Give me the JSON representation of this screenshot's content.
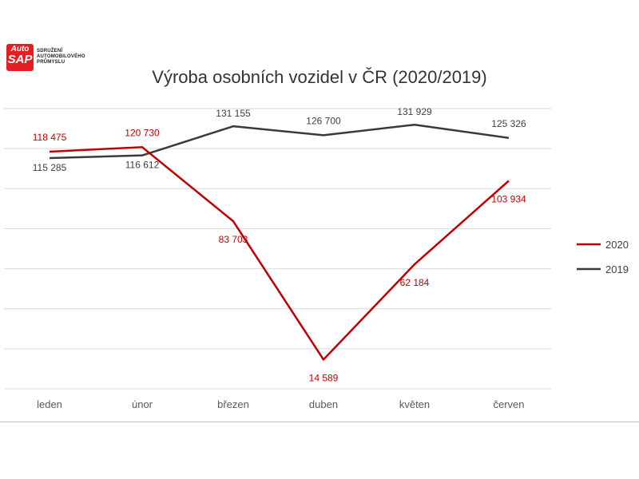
{
  "logo": {
    "badge_top": "Auto",
    "badge_bottom": "SAP",
    "line1": "SDRUŽENÍ",
    "line2": "AUTOMOBILOVÉHO",
    "line3": "PRŮMYSLU"
  },
  "chart_data": {
    "type": "line",
    "title": "Výroba osobních vozidel v ČR (2020/2019)",
    "xlabel": "",
    "ylabel": "",
    "categories": [
      "leden",
      "únor",
      "březen",
      "duben",
      "květen",
      "červen"
    ],
    "ylim": [
      0,
      140000
    ],
    "grid": true,
    "legend": "right",
    "series": [
      {
        "name": "2020",
        "color": "#c00000",
        "values": [
          118475,
          120730,
          83703,
          14589,
          62184,
          103934
        ],
        "labels": [
          "118 475",
          "120 730",
          "83 703",
          "14 589",
          "62 184",
          "103 934"
        ]
      },
      {
        "name": "2019",
        "color": "#3a3a3a",
        "values": [
          115285,
          116612,
          131155,
          126700,
          131929,
          125326
        ],
        "labels": [
          "115 285",
          "116 612",
          "131 155",
          "126 700",
          "131 929",
          "125 326"
        ]
      }
    ]
  }
}
